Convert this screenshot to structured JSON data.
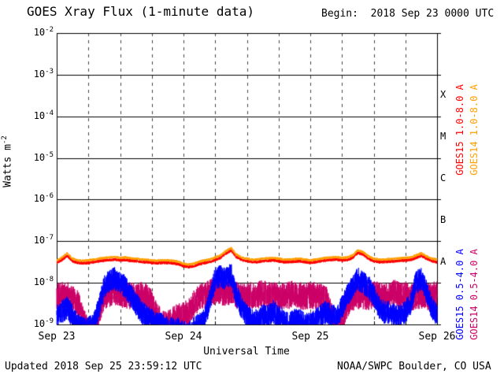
{
  "header": {
    "title": "GOES Xray Flux (1-minute data)",
    "begin_label": "Begin:  2018 Sep 23 0000 UTC"
  },
  "footer": {
    "updated": "Updated 2018 Sep 25 23:59:12 UTC",
    "credit": "NOAA/SWPC Boulder, CO USA"
  },
  "axes": {
    "y_label": "Watts m",
    "y_label_exp": "-2",
    "x_label": "Universal Time",
    "y_tick_base": "10",
    "y_tick_exponents": [
      -2,
      -3,
      -4,
      -5,
      -6,
      -7,
      -8,
      -9
    ],
    "x_tick_labels": [
      "Sep 23",
      "Sep 24",
      "Sep 25",
      "Sep 26"
    ],
    "flare_classes": [
      "X",
      "M",
      "C",
      "B",
      "A"
    ]
  },
  "colors": {
    "background": "#ffffff",
    "axis": "#000000",
    "grid_dash": "#444444"
  },
  "chart_data": {
    "type": "line",
    "title": "GOES Xray Flux (1-minute data)",
    "xlabel": "Universal Time",
    "ylabel": "Watts m^-2",
    "y_scale": "log10",
    "y_range": [
      1e-09,
      0.01
    ],
    "x_unit": "hours since 2018 Sep 23 0000 UTC",
    "x_range_hours": [
      0,
      72
    ],
    "samples_per_hour": 60,
    "legend_position": "right",
    "grid": {
      "h_lines_exponents": [
        -3,
        -4,
        -5,
        -6,
        -7,
        -8
      ],
      "v_line_interval_hours": 6
    },
    "series": [
      {
        "name": "GOES15 1.0-8.0 A",
        "color": "#ff0000",
        "noise_log": 0.035,
        "seed": 11,
        "hourly_log10_flux": [
          -7.52,
          -7.45,
          -7.35,
          -7.48,
          -7.52,
          -7.53,
          -7.52,
          -7.5,
          -7.48,
          -7.46,
          -7.45,
          -7.44,
          -7.46,
          -7.45,
          -7.47,
          -7.48,
          -7.5,
          -7.5,
          -7.52,
          -7.53,
          -7.52,
          -7.52,
          -7.53,
          -7.55,
          -7.6,
          -7.62,
          -7.6,
          -7.55,
          -7.52,
          -7.5,
          -7.45,
          -7.4,
          -7.3,
          -7.22,
          -7.38,
          -7.45,
          -7.48,
          -7.5,
          -7.5,
          -7.48,
          -7.47,
          -7.46,
          -7.48,
          -7.5,
          -7.5,
          -7.49,
          -7.48,
          -7.5,
          -7.52,
          -7.5,
          -7.48,
          -7.46,
          -7.45,
          -7.44,
          -7.46,
          -7.45,
          -7.4,
          -7.28,
          -7.32,
          -7.42,
          -7.48,
          -7.5,
          -7.5,
          -7.49,
          -7.48,
          -7.47,
          -7.46,
          -7.45,
          -7.4,
          -7.35,
          -7.42,
          -7.48,
          -7.5
        ]
      },
      {
        "name": "GOES14 1.0-8.0 A",
        "color": "#ff9f00",
        "noise_log": 0.03,
        "seed": 22,
        "hourly_log10_flux": [
          -7.46,
          -7.39,
          -7.29,
          -7.42,
          -7.46,
          -7.47,
          -7.46,
          -7.44,
          -7.42,
          -7.4,
          -7.39,
          -7.38,
          -7.4,
          -7.39,
          -7.41,
          -7.42,
          -7.44,
          -7.44,
          -7.46,
          -7.47,
          -7.46,
          -7.46,
          -7.47,
          -7.49,
          -7.54,
          -7.56,
          -7.54,
          -7.49,
          -7.46,
          -7.44,
          -7.39,
          -7.34,
          -7.24,
          -7.16,
          -7.32,
          -7.39,
          -7.42,
          -7.44,
          -7.44,
          -7.42,
          -7.41,
          -7.4,
          -7.42,
          -7.44,
          -7.44,
          -7.43,
          -7.42,
          -7.44,
          -7.46,
          -7.44,
          -7.42,
          -7.4,
          -7.39,
          -7.38,
          -7.4,
          -7.39,
          -7.34,
          -7.22,
          -7.26,
          -7.36,
          -7.42,
          -7.44,
          -7.44,
          -7.43,
          -7.42,
          -7.41,
          -7.4,
          -7.39,
          -7.34,
          -7.29,
          -7.36,
          -7.42,
          -7.44
        ]
      },
      {
        "name": "GOES15 0.5-4.0 A",
        "color": "#0000ff",
        "noise_log": 0.28,
        "seed": 33,
        "hourly_log10_flux": [
          -8.8,
          -8.7,
          -8.6,
          -8.8,
          -9.0,
          -9.1,
          -9.1,
          -9.0,
          -8.6,
          -8.1,
          -7.95,
          -7.9,
          -8.0,
          -8.1,
          -8.3,
          -8.5,
          -8.7,
          -8.8,
          -8.9,
          -9.0,
          -9.0,
          -9.1,
          -9.1,
          -9.1,
          -9.2,
          -9.2,
          -9.1,
          -9.0,
          -8.9,
          -8.4,
          -7.9,
          -7.85,
          -7.9,
          -7.8,
          -8.3,
          -8.6,
          -8.8,
          -8.9,
          -8.9,
          -8.8,
          -8.8,
          -8.7,
          -8.8,
          -8.9,
          -9.0,
          -8.9,
          -8.9,
          -9.0,
          -9.0,
          -8.9,
          -8.8,
          -8.7,
          -8.8,
          -8.8,
          -8.6,
          -8.3,
          -8.1,
          -7.9,
          -8.0,
          -8.1,
          -8.3,
          -8.6,
          -8.7,
          -8.7,
          -8.8,
          -8.8,
          -8.7,
          -8.5,
          -8.0,
          -7.9,
          -8.2,
          -8.6,
          -8.8
        ]
      },
      {
        "name": "GOES14 0.5-4.0 A",
        "color": "#cc0066",
        "noise_log": 0.33,
        "seed": 44,
        "hourly_log10_flux": [
          -8.35,
          -8.3,
          -8.3,
          -8.4,
          -8.5,
          -8.9,
          -9.2,
          -9.2,
          -8.7,
          -8.3,
          -8.25,
          -8.2,
          -8.25,
          -8.3,
          -8.3,
          -8.35,
          -8.3,
          -8.35,
          -8.5,
          -8.8,
          -9.0,
          -9.0,
          -8.9,
          -8.8,
          -8.8,
          -8.7,
          -8.5,
          -8.35,
          -8.3,
          -8.25,
          -8.2,
          -8.2,
          -8.25,
          -8.2,
          -8.3,
          -8.3,
          -8.35,
          -8.3,
          -8.3,
          -8.25,
          -8.3,
          -8.3,
          -8.35,
          -8.3,
          -8.3,
          -8.25,
          -8.3,
          -8.35,
          -8.3,
          -8.3,
          -8.35,
          -8.4,
          -8.8,
          -9.2,
          -9.0,
          -8.5,
          -8.35,
          -8.3,
          -8.3,
          -8.35,
          -8.3,
          -8.3,
          -8.35,
          -8.3,
          -8.25,
          -8.3,
          -8.3,
          -8.35,
          -8.3,
          -8.3,
          -8.35,
          -8.3,
          -8.3
        ]
      }
    ],
    "draw_order": [
      3,
      2,
      0,
      1
    ]
  }
}
